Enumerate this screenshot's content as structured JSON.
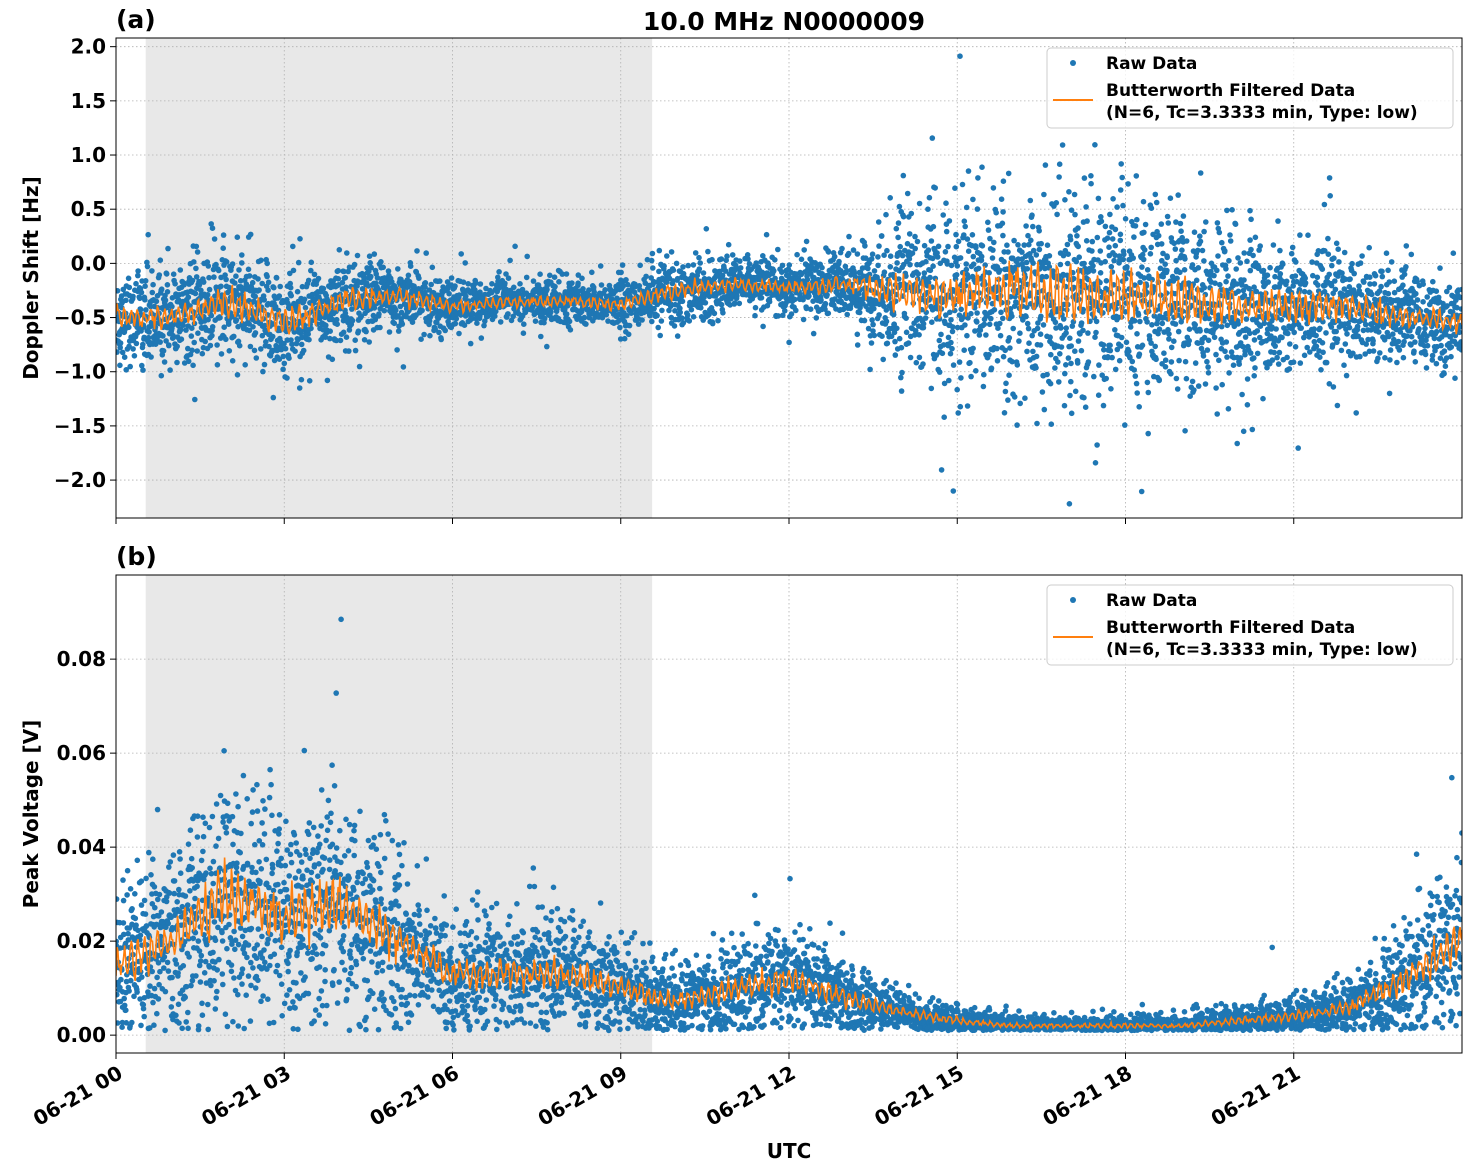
{
  "title": "10.0 MHz N0000009",
  "chart_data": [
    {
      "panel_label": "(a)",
      "type": "scatter",
      "ylabel": "Doppler Shift [Hz]",
      "xlabel": "",
      "xlim_hours": [
        0,
        24
      ],
      "ylim": [
        -2.35,
        2.08
      ],
      "yticks": [
        "−2.0",
        "−1.5",
        "−1.0",
        "−0.5",
        "0.0",
        "0.5",
        "1.0",
        "1.5",
        "2.0"
      ],
      "ytick_values": [
        -2.0,
        -1.5,
        -1.0,
        -0.5,
        0.0,
        0.5,
        1.0,
        1.5,
        2.0
      ],
      "grid": true,
      "shaded_region_hours": [
        0.53,
        9.56
      ],
      "legend_position": "top-right",
      "legend": [
        "Raw Data",
        "Butterworth Filtered Data",
        "(N=6, Tc=3.3333 min, Type: low)"
      ],
      "series": [
        {
          "name": "Raw Data",
          "kind": "scatter",
          "color": "#1f77b4",
          "hours": [
            0,
            1,
            2,
            3,
            4,
            5,
            6,
            7,
            8,
            9,
            10,
            11,
            12,
            13,
            14,
            15,
            16,
            17,
            18,
            19,
            20,
            21,
            22,
            23,
            24
          ],
          "center": [
            -0.5,
            -0.5,
            -0.35,
            -0.55,
            -0.35,
            -0.3,
            -0.4,
            -0.35,
            -0.35,
            -0.38,
            -0.25,
            -0.2,
            -0.22,
            -0.2,
            -0.25,
            -0.3,
            -0.25,
            -0.3,
            -0.3,
            -0.35,
            -0.4,
            -0.4,
            -0.4,
            -0.5,
            -0.55
          ],
          "spread": [
            0.2,
            0.2,
            0.25,
            0.25,
            0.2,
            0.15,
            0.12,
            0.1,
            0.1,
            0.12,
            0.15,
            0.12,
            0.12,
            0.15,
            0.35,
            0.4,
            0.45,
            0.5,
            0.45,
            0.4,
            0.35,
            0.3,
            0.25,
            0.2,
            0.2
          ]
        },
        {
          "name": "Butterworth Filtered Data (N=6, Tc=3.3333 min, Type: low)",
          "kind": "line",
          "color": "#ff7f0e",
          "hours": [
            0,
            1,
            2,
            3,
            4,
            5,
            6,
            7,
            8,
            9,
            10,
            11,
            12,
            13,
            14,
            15,
            16,
            17,
            18,
            19,
            20,
            21,
            22,
            23,
            24
          ],
          "values": [
            -0.5,
            -0.5,
            -0.35,
            -0.55,
            -0.35,
            -0.3,
            -0.4,
            -0.35,
            -0.35,
            -0.38,
            -0.25,
            -0.2,
            -0.22,
            -0.2,
            -0.25,
            -0.3,
            -0.25,
            -0.3,
            -0.3,
            -0.35,
            -0.4,
            -0.4,
            -0.4,
            -0.5,
            -0.55
          ]
        }
      ]
    },
    {
      "panel_label": "(b)",
      "type": "scatter",
      "ylabel": "Peak Voltage [V]",
      "xlabel": "UTC",
      "xlim_hours": [
        0,
        24
      ],
      "ylim": [
        -0.0038,
        0.0979
      ],
      "yticks": [
        "0.00",
        "0.02",
        "0.04",
        "0.06",
        "0.08"
      ],
      "ytick_values": [
        0,
        0.02,
        0.04,
        0.06,
        0.08
      ],
      "xticks": [
        "06-21 00",
        "06-21 03",
        "06-21 06",
        "06-21 09",
        "06-21 12",
        "06-21 15",
        "06-21 18",
        "06-21 21"
      ],
      "xtick_hours": [
        0,
        3,
        6,
        9,
        12,
        15,
        18,
        21
      ],
      "grid": true,
      "shaded_region_hours": [
        0.53,
        9.56
      ],
      "legend_position": "top-right",
      "legend": [
        "Raw Data",
        "Butterworth Filtered Data",
        "(N=6, Tc=3.3333 min, Type: low)"
      ],
      "series": [
        {
          "name": "Raw Data",
          "kind": "scatter",
          "color": "#1f77b4",
          "hours": [
            0,
            1,
            2,
            3,
            4,
            5,
            6,
            7,
            8,
            9,
            10,
            11,
            12,
            13,
            14,
            15,
            16,
            17,
            18,
            19,
            20,
            21,
            22,
            23,
            24
          ],
          "center": [
            0.015,
            0.02,
            0.03,
            0.025,
            0.028,
            0.02,
            0.013,
            0.013,
            0.013,
            0.01,
            0.007,
            0.01,
            0.012,
            0.008,
            0.005,
            0.003,
            0.002,
            0.002,
            0.002,
            0.002,
            0.003,
            0.004,
            0.006,
            0.012,
            0.02
          ],
          "spread": [
            0.007,
            0.009,
            0.012,
            0.011,
            0.012,
            0.008,
            0.006,
            0.006,
            0.006,
            0.005,
            0.004,
            0.005,
            0.005,
            0.004,
            0.002,
            0.0015,
            0.001,
            0.001,
            0.001,
            0.001,
            0.0015,
            0.002,
            0.003,
            0.006,
            0.009
          ]
        },
        {
          "name": "Butterworth Filtered Data (N=6, Tc=3.3333 min, Type: low)",
          "kind": "line",
          "color": "#ff7f0e",
          "hours": [
            0,
            1,
            2,
            3,
            4,
            5,
            6,
            7,
            8,
            9,
            10,
            11,
            12,
            13,
            14,
            15,
            16,
            17,
            18,
            19,
            20,
            21,
            22,
            23,
            24
          ],
          "values": [
            0.015,
            0.02,
            0.03,
            0.025,
            0.028,
            0.02,
            0.013,
            0.013,
            0.013,
            0.01,
            0.007,
            0.01,
            0.012,
            0.008,
            0.005,
            0.003,
            0.002,
            0.002,
            0.002,
            0.002,
            0.003,
            0.004,
            0.006,
            0.012,
            0.02
          ]
        }
      ]
    }
  ]
}
